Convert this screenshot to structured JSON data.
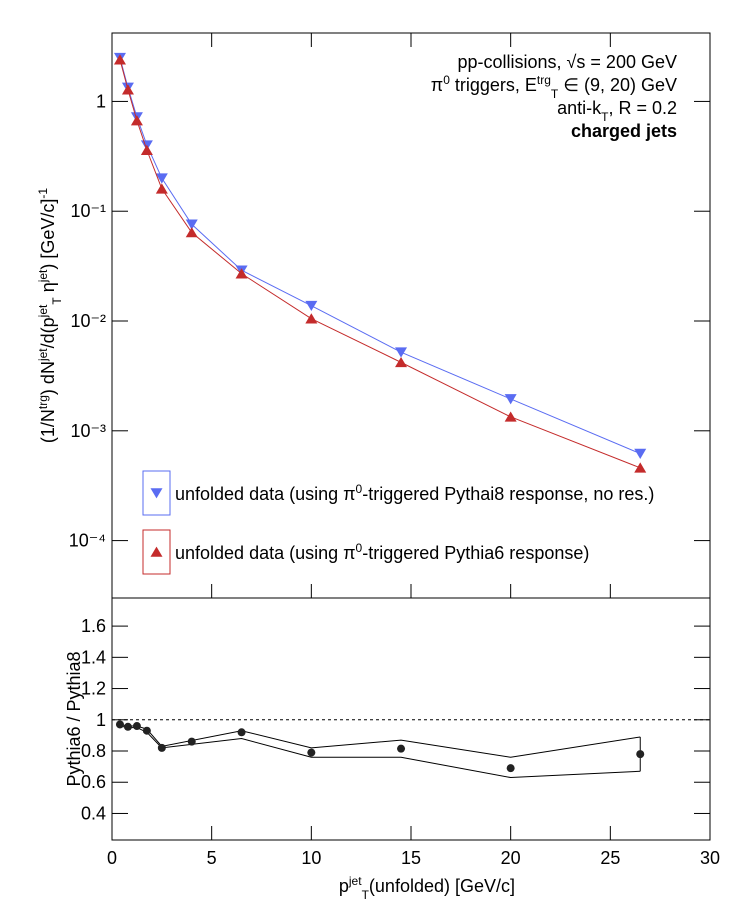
{
  "chart_data": [
    {
      "type": "line",
      "annotations": [
        [
          "pp-collisions, ",
          "√s",
          " = 200 GeV"
        ],
        [
          "π",
          {
            "sup": "0"
          },
          " triggers, E",
          {
            "sup": "trg"
          },
          {
            "sub": "T"
          },
          " ∈ (9, 20) GeV"
        ],
        [
          "anti-k",
          {
            "sub": "T"
          },
          ", R = 0.2"
        ],
        [
          "charged jets"
        ]
      ],
      "ylabel": [
        "(1/N",
        {
          "sup": "trg"
        },
        ") dN",
        {
          "sup": "jet"
        },
        "/d(p",
        {
          "sup": "jet"
        },
        {
          "sub": "T"
        },
        " η",
        {
          "sup": "jet"
        },
        ") [GeV/c]",
        {
          "sup": "-1"
        }
      ],
      "log_y": true,
      "x": [
        0.4,
        0.8,
        1.25,
        1.75,
        2.5,
        4,
        6.5,
        10,
        14.5,
        20,
        26.5
      ],
      "series": [
        {
          "name": [
            "unfolded data (using π",
            {
              "sup": "0"
            },
            "-triggered Pythai8 response, no res.)"
          ],
          "color": "#5a6cf2",
          "marker": "triangle-down",
          "values": [
            2.5,
            1.34,
            0.72,
            0.4,
            0.2,
            0.076,
            0.029,
            0.0138,
            0.0052,
            0.00195,
            0.00062
          ]
        },
        {
          "name": [
            "unfolded data (using π",
            {
              "sup": "0"
            },
            "-triggered Pythia6 response)"
          ],
          "color": "#c42b2b",
          "marker": "triangle-up",
          "values": [
            2.4,
            1.28,
            0.67,
            0.36,
            0.16,
            0.064,
            0.027,
            0.0105,
            0.0042,
            0.00134,
            0.00046
          ]
        }
      ],
      "xlim": [
        0,
        30
      ],
      "xticks": [
        0,
        5,
        10,
        15,
        20,
        25,
        30
      ],
      "ylim": [
        3e-05,
        4.2
      ],
      "yticks": [
        {
          "value": 0.0001,
          "label": "10⁻⁴"
        },
        {
          "value": 0.001,
          "label": "10⁻³"
        },
        {
          "value": 0.01,
          "label": "10⁻²"
        },
        {
          "value": 0.1,
          "label": "10⁻¹"
        },
        1
      ],
      "legend": "bottom-left"
    },
    {
      "type": "scatter",
      "ylabel": [
        "Pythia6 / Pythia8"
      ],
      "xlabel": [
        "p",
        {
          "sup": "jet"
        },
        {
          "sub": "T"
        },
        "(unfolded) [GeV/c]"
      ],
      "x": [
        0.4,
        0.8,
        1.25,
        1.75,
        2.5,
        4,
        6.5,
        10,
        14.5,
        20,
        26.5
      ],
      "values": [
        0.97,
        0.955,
        0.96,
        0.93,
        0.82,
        0.86,
        0.92,
        0.79,
        0.815,
        0.69,
        0.78
      ],
      "color": "#222222",
      "band": {
        "x": [
          0.4,
          0.8,
          1.25,
          1.75,
          2.5,
          6.5,
          10,
          14.5,
          20,
          26.5
        ],
        "upper": [
          0.97,
          0.96,
          0.96,
          0.94,
          0.83,
          0.93,
          0.82,
          0.87,
          0.76,
          0.89
        ],
        "lower": [
          0.96,
          0.95,
          0.95,
          0.92,
          0.82,
          0.88,
          0.76,
          0.76,
          0.63,
          0.67
        ]
      },
      "reference_line": 1,
      "xlim": [
        0,
        30
      ],
      "xticks": [
        0,
        5,
        10,
        15,
        20,
        25,
        30
      ],
      "ylim": [
        0.23,
        1.78
      ],
      "yticks": [
        0.4,
        0.6,
        0.8,
        1,
        1.2,
        1.4,
        1.6
      ]
    }
  ]
}
